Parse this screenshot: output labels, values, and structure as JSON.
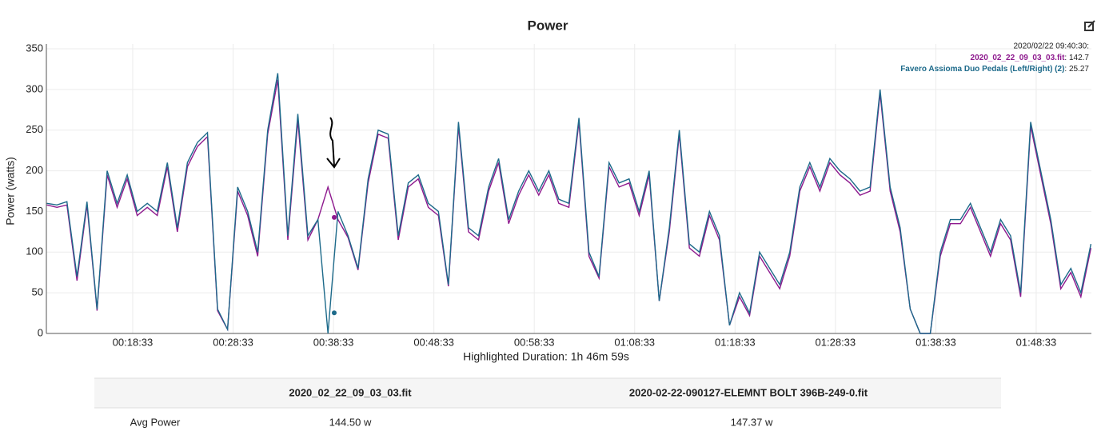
{
  "chart_data": {
    "type": "line",
    "title": "Power",
    "y_label": "Power (watts)",
    "x_label": "Highlighted Duration: 1h 46m 59s",
    "x": [
      10,
      11,
      12,
      13,
      14,
      15,
      16,
      17,
      18,
      19,
      20,
      21,
      22,
      23,
      24,
      25,
      26,
      27,
      28,
      29,
      30,
      31,
      32,
      33,
      34,
      35,
      36,
      37,
      38,
      39,
      40,
      41,
      42,
      43,
      44,
      45,
      46,
      47,
      48,
      49,
      50,
      51,
      52,
      53,
      54,
      55,
      56,
      57,
      58,
      59,
      60,
      61,
      62,
      63,
      64,
      65,
      66,
      67,
      68,
      69,
      70,
      71,
      72,
      73,
      74,
      75,
      76,
      77,
      78,
      79,
      80,
      81,
      82,
      83,
      84,
      85,
      86,
      87,
      88,
      89,
      90,
      91,
      92,
      93,
      94,
      95,
      96,
      97,
      98,
      99,
      100,
      101,
      102,
      103,
      104,
      105,
      106,
      107,
      108,
      109,
      110,
      111,
      112,
      113,
      114
    ],
    "series": [
      {
        "name": "2020_02_22_09_03_03.fit",
        "color": "#8e1a8e",
        "values": [
          158,
          155,
          158,
          65,
          158,
          28,
          195,
          155,
          190,
          145,
          155,
          145,
          205,
          125,
          205,
          230,
          242,
          28,
          5,
          175,
          145,
          95,
          245,
          312,
          115,
          262,
          115,
          140,
          180,
          140,
          118,
          78,
          185,
          245,
          240,
          115,
          180,
          190,
          155,
          145,
          58,
          255,
          125,
          115,
          175,
          210,
          135,
          170,
          195,
          170,
          195,
          160,
          155,
          260,
          95,
          68,
          205,
          180,
          185,
          145,
          195,
          40,
          125,
          245,
          105,
          95,
          145,
          115,
          10,
          45,
          22,
          95,
          75,
          55,
          95,
          175,
          205,
          175,
          210,
          195,
          185,
          170,
          175,
          295,
          175,
          125,
          30,
          0,
          0,
          95,
          135,
          135,
          155,
          125,
          95,
          135,
          115,
          45,
          255,
          195,
          135,
          55,
          75,
          45,
          105
        ]
      },
      {
        "name": "Favero Assioma Duo Pedals (Left/Right) (2)",
        "color": "#1d6a8a",
        "values": [
          160,
          158,
          162,
          70,
          162,
          30,
          200,
          160,
          195,
          150,
          160,
          150,
          210,
          130,
          210,
          235,
          247,
          30,
          5,
          180,
          150,
          100,
          250,
          320,
          120,
          270,
          120,
          140,
          0,
          150,
          120,
          80,
          190,
          250,
          245,
          120,
          185,
          195,
          160,
          150,
          60,
          260,
          130,
          120,
          180,
          215,
          140,
          175,
          200,
          175,
          200,
          165,
          160,
          265,
          100,
          70,
          210,
          185,
          190,
          150,
          200,
          40,
          130,
          250,
          110,
          100,
          150,
          120,
          10,
          50,
          25,
          100,
          80,
          60,
          100,
          180,
          210,
          180,
          215,
          200,
          190,
          175,
          180,
          300,
          180,
          130,
          30,
          0,
          0,
          100,
          140,
          140,
          160,
          130,
          100,
          140,
          120,
          50,
          260,
          200,
          140,
          60,
          80,
          50,
          110
        ]
      }
    ],
    "xlim": [
      9.95,
      114.05
    ],
    "xticks": [
      {
        "value": 18.55,
        "label": "00:18:33"
      },
      {
        "value": 28.55,
        "label": "00:28:33"
      },
      {
        "value": 38.55,
        "label": "00:38:33"
      },
      {
        "value": 48.55,
        "label": "00:48:33"
      },
      {
        "value": 58.55,
        "label": "00:58:33"
      },
      {
        "value": 68.55,
        "label": "01:08:33"
      },
      {
        "value": 78.55,
        "label": "01:18:33"
      },
      {
        "value": 88.55,
        "label": "01:28:33"
      },
      {
        "value": 98.55,
        "label": "01:38:33"
      },
      {
        "value": 108.55,
        "label": "01:48:33"
      }
    ],
    "ylim": [
      0,
      350
    ],
    "yticks": [
      0,
      50,
      100,
      150,
      200,
      250,
      300,
      350
    ],
    "grid": true,
    "tooltip": {
      "time": "2020/02/22 09:40:30:",
      "values": [
        142.7,
        25.27
      ]
    }
  },
  "table": {
    "headers": [
      "2020_02_22_09_03_03.fit",
      "2020-02-22-090127-ELEMNT BOLT 396B-249-0.fit"
    ],
    "rows": [
      [
        "Avg Power",
        "144.50 w",
        "147.37 w"
      ]
    ]
  }
}
